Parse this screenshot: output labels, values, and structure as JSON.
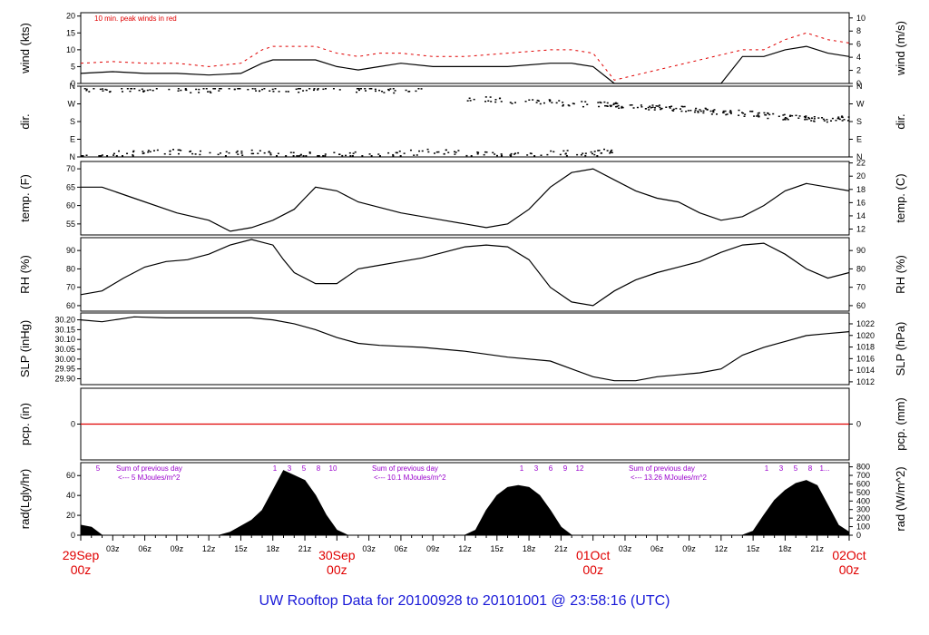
{
  "title": "UW Rooftop Data for 20100928  to  20101001 @ 23:58:16  (UTC)",
  "colors": {
    "title": "#1a1ad8",
    "day_label": "#e00000",
    "peak": "#e00000",
    "annotation": "#9900cc",
    "trace": "#000000"
  },
  "chart_data": {
    "type": "line",
    "x_range_hours": [
      0,
      72
    ],
    "x_hour_ticks": [
      "03z",
      "06z",
      "09z",
      "12z",
      "15z",
      "18z",
      "21z",
      "03z",
      "06z",
      "09z",
      "12z",
      "15z",
      "18z",
      "21z",
      "03z",
      "06z",
      "09z",
      "12z",
      "15z",
      "18z",
      "21z"
    ],
    "day_labels": [
      {
        "date": "29Sep",
        "time": "00z"
      },
      {
        "date": "30Sep",
        "time": "00z"
      },
      {
        "date": "01Oct",
        "time": "00z"
      },
      {
        "date": "02Oct",
        "time": "00z"
      }
    ],
    "panels": [
      {
        "id": "wind",
        "left_label": "wind (kts)",
        "right_label": "wind (m/s)",
        "left_ticks": [
          0,
          5,
          10,
          15,
          20
        ],
        "right_ticks": [
          0,
          2,
          4,
          6,
          8,
          10
        ],
        "ylim": [
          0,
          21
        ],
        "annotation": "10 min. peak winds in red",
        "series": [
          {
            "role": "mean",
            "x": [
              0,
              3,
              6,
              9,
              12,
              15,
              17,
              18,
              20,
              22,
              24,
              26,
              28,
              30,
              33,
              36,
              40,
              44,
              46,
              48,
              50,
              52,
              54,
              55,
              58,
              60,
              62,
              64,
              66,
              68,
              70,
              72
            ],
            "y": [
              3,
              3.5,
              3,
              3,
              2.5,
              3,
              6,
              7,
              7,
              7,
              5,
              4,
              5,
              6,
              5,
              5,
              5,
              6,
              6,
              5,
              0,
              0,
              0,
              0,
              0,
              0,
              8,
              8,
              10,
              11,
              9,
              8
            ]
          },
          {
            "role": "peak",
            "x": [
              0,
              3,
              6,
              9,
              12,
              15,
              17,
              18,
              20,
              22,
              24,
              26,
              28,
              30,
              33,
              36,
              40,
              44,
              46,
              48,
              50,
              62,
              64,
              66,
              68,
              70,
              72
            ],
            "y": [
              6,
              6.5,
              6,
              6,
              5,
              6,
              10,
              11,
              11,
              11,
              9,
              8,
              9,
              9,
              8,
              8,
              9,
              10,
              10,
              9,
              1,
              10,
              10,
              13,
              15,
              13,
              12
            ]
          }
        ]
      },
      {
        "id": "dir",
        "left_label": "dir.",
        "right_label": "dir.",
        "left_ticks": [
          "N",
          "E",
          "S",
          "W",
          "N"
        ],
        "right_ticks": [
          "N",
          "E",
          "S",
          "W",
          "N"
        ],
        "ylim": [
          0,
          360
        ],
        "series": [
          {
            "role": "north_upper",
            "x": [
              0,
              4,
              8,
              12,
              16,
              20,
              24,
              28,
              32
            ],
            "y": [
              350,
              345,
              350,
              340,
              355,
              345,
              350,
              340,
              350
            ]
          },
          {
            "role": "north_lower",
            "x": [
              0,
              4,
              8,
              12,
              16,
              20,
              24,
              28,
              32,
              36,
              40,
              44,
              48,
              50
            ],
            "y": [
              10,
              20,
              30,
              15,
              25,
              10,
              20,
              15,
              30,
              20,
              10,
              25,
              20,
              40
            ]
          },
          {
            "role": "shift",
            "x": [
              36,
              40,
              44,
              48,
              50,
              52,
              54,
              56,
              58,
              60,
              62,
              64,
              66,
              68,
              70,
              72
            ],
            "y": [
              300,
              290,
              280,
              270,
              265,
              260,
              255,
              250,
              240,
              230,
              225,
              215,
              205,
              200,
              195,
              200
            ]
          }
        ]
      },
      {
        "id": "temp",
        "left_label": "temp. (F)",
        "right_label": "temp. (C)",
        "left_ticks": [
          55,
          60,
          65,
          70
        ],
        "right_ticks": [
          12,
          14,
          16,
          18,
          20,
          22
        ],
        "ylim": [
          52,
          72
        ],
        "series": [
          {
            "x": [
              0,
              2,
              5,
              9,
              12,
              14,
              16,
              18,
              20,
              21,
              22,
              24,
              26,
              30,
              34,
              36,
              38,
              40,
              42,
              44,
              46,
              48,
              50,
              52,
              54,
              56,
              58,
              60,
              62,
              64,
              66,
              68,
              70,
              72
            ],
            "y": [
              65,
              65,
              62,
              58,
              56,
              53,
              54,
              56,
              59,
              62,
              65,
              64,
              61,
              58,
              56,
              55,
              54,
              55,
              59,
              65,
              69,
              70,
              67,
              64,
              62,
              61,
              58,
              56,
              57,
              60,
              64,
              66,
              65,
              64
            ]
          }
        ]
      },
      {
        "id": "rh",
        "left_label": "RH (%)",
        "right_label": "RH (%)",
        "left_ticks": [
          60,
          70,
          80,
          90
        ],
        "right_ticks": [
          60,
          70,
          80,
          90
        ],
        "ylim": [
          57,
          97
        ],
        "series": [
          {
            "x": [
              0,
              2,
              4,
              6,
              8,
              10,
              12,
              14,
              16,
              18,
              19,
              20,
              22,
              24,
              26,
              28,
              30,
              32,
              34,
              36,
              38,
              40,
              42,
              44,
              46,
              48,
              50,
              52,
              54,
              56,
              58,
              60,
              62,
              64,
              66,
              68,
              70,
              72
            ],
            "y": [
              66,
              68,
              75,
              81,
              84,
              85,
              88,
              93,
              96,
              93,
              85,
              78,
              72,
              72,
              80,
              82,
              84,
              86,
              89,
              92,
              93,
              92,
              85,
              70,
              62,
              60,
              68,
              74,
              78,
              81,
              84,
              89,
              93,
              94,
              88,
              80,
              75,
              78
            ]
          }
        ]
      },
      {
        "id": "slp",
        "left_label": "SLP (inHg)",
        "right_label": "SLP (hPa)",
        "left_ticks": [
          29.9,
          29.95,
          30.0,
          30.05,
          30.1,
          30.15,
          30.2
        ],
        "right_ticks": [
          1012,
          1014,
          1016,
          1018,
          1020,
          1022
        ],
        "ylim": [
          29.87,
          30.235
        ],
        "series": [
          {
            "x": [
              0,
              2,
              5,
              8,
              12,
              16,
              18,
              20,
              22,
              24,
              26,
              28,
              32,
              36,
              40,
              44,
              46,
              48,
              50,
              52,
              54,
              56,
              58,
              60,
              62,
              64,
              66,
              68,
              70,
              72
            ],
            "y": [
              30.2,
              30.19,
              30.215,
              30.21,
              30.21,
              30.21,
              30.2,
              30.18,
              30.15,
              30.11,
              30.08,
              30.07,
              30.06,
              30.04,
              30.01,
              29.99,
              29.95,
              29.91,
              29.89,
              29.89,
              29.91,
              29.92,
              29.93,
              29.95,
              30.02,
              30.06,
              30.09,
              30.12,
              30.13,
              30.14
            ]
          }
        ]
      },
      {
        "id": "pcp",
        "left_label": "pcp. (in)",
        "right_label": "pcp. (mm)",
        "left_ticks": [
          0
        ],
        "right_ticks": [
          0
        ],
        "ylim": [
          -1,
          1
        ],
        "series": [
          {
            "x": [
              0,
              72
            ],
            "y": [
              0,
              0
            ]
          }
        ]
      },
      {
        "id": "rad",
        "type": "area",
        "left_label": "rad(Lgly/hr)",
        "right_label": "rad (W/m^2)",
        "left_ticks": [
          0,
          20,
          40,
          60
        ],
        "right_ticks": [
          0,
          100,
          200,
          300,
          400,
          500,
          600,
          700,
          800
        ],
        "ylim": [
          0,
          73
        ],
        "series": [
          {
            "x": [
              0,
              1,
              2,
              13,
              14,
              16,
              17,
              18,
              19,
              20,
              21,
              22,
              23,
              24,
              25,
              26,
              36,
              37,
              38,
              39,
              40,
              41,
              42,
              43,
              44,
              45,
              46,
              49,
              50,
              51,
              62,
              63,
              64,
              65,
              66,
              67,
              68,
              69,
              70,
              71,
              72
            ],
            "y": [
              10,
              8,
              0,
              0,
              3,
              15,
              25,
              45,
              65,
              60,
              55,
              40,
              20,
              5,
              0,
              0,
              0,
              5,
              25,
              40,
              48,
              50,
              48,
              40,
              25,
              8,
              0,
              0,
              0,
              0,
              0,
              4,
              20,
              35,
              45,
              52,
              55,
              50,
              30,
              10,
              3
            ]
          }
        ],
        "hour_markers": [
          {
            "day": 0,
            "labels": [
              "5"
            ]
          },
          {
            "day": 1,
            "labels": [
              "1",
              "3",
              "5",
              "8",
              "10"
            ]
          },
          {
            "day": 2,
            "labels": [
              "1",
              "3",
              "6",
              "9",
              "12"
            ]
          },
          {
            "day": 3,
            "labels": [
              "1",
              "3",
              "5",
              "8",
              "1..."
            ]
          }
        ],
        "daily_sums": [
          {
            "title": "Sum of previous day",
            "value": "<--- 5 MJoules/m^2"
          },
          {
            "title": "Sum of previous day",
            "value": "<--- 10.1 MJoules/m^2"
          },
          {
            "title": "Sum of previous day",
            "value": "<--- 13.26 MJoules/m^2"
          }
        ]
      }
    ]
  }
}
